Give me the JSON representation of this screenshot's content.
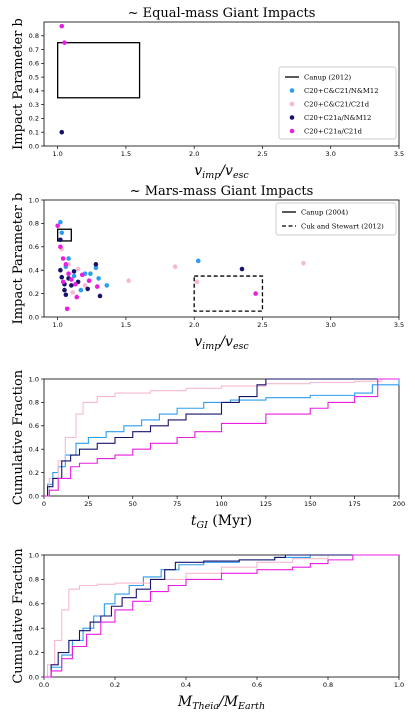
{
  "colors": {
    "blue": "#2b9ef0",
    "pink": "#f7b9cf",
    "navy": "#17136b",
    "magenta": "#e91ee0"
  },
  "chart_data": [
    {
      "type": "scatter",
      "title": "~ Equal-mass Giant Impacts",
      "ylabel": "Impact Parameter b",
      "xlabel_main": "v",
      "xlabel_sub1": "imp",
      "xlabel_mid": "/v",
      "xlabel_sub2": "esc",
      "xlim": [
        0.9,
        3.5
      ],
      "ylim": [
        0.0,
        0.9
      ],
      "xticks": [
        "1.0",
        "1.5",
        "2.0",
        "2.5",
        "3.0",
        "3.5"
      ],
      "yticks": [
        "0.0",
        "0.1",
        "0.2",
        "0.3",
        "0.4",
        "0.5",
        "0.6",
        "0.7",
        "0.8"
      ],
      "legend_placement": "lower-right",
      "boxes": [
        {
          "label": "Canup (2012)",
          "style": "solid",
          "x0": 1.0,
          "x1": 1.6,
          "y0": 0.35,
          "y1": 0.75
        }
      ],
      "series": [
        {
          "name": "C20+C&C21/N&M12",
          "color": "blue",
          "points": []
        },
        {
          "name": "C20+C&C21/C21d",
          "color": "pink",
          "points": []
        },
        {
          "name": "C20+C21a/N&M12",
          "color": "navy",
          "points": [
            [
              1.03,
              0.1
            ]
          ]
        },
        {
          "name": "C20+C21a/C21d",
          "color": "magenta",
          "points": [
            [
              1.03,
              0.87
            ],
            [
              1.05,
              0.75
            ]
          ]
        }
      ]
    },
    {
      "type": "scatter",
      "title": "~ Mars-mass Giant Impacts",
      "ylabel": "Impact Parameter b",
      "xlabel_main": "v",
      "xlabel_sub1": "imp",
      "xlabel_mid": "/v",
      "xlabel_sub2": "esc",
      "xlim": [
        0.9,
        3.5
      ],
      "ylim": [
        0.0,
        1.0
      ],
      "xticks": [
        "1.0",
        "1.5",
        "2.0",
        "2.5",
        "3.0",
        "3.5"
      ],
      "yticks": [
        "0.0",
        "0.2",
        "0.4",
        "0.6",
        "0.8",
        "1.0"
      ],
      "legend_placement": "upper-right",
      "boxes": [
        {
          "label": "Canup (2004)",
          "style": "solid",
          "x0": 1.0,
          "x1": 1.1,
          "y0": 0.65,
          "y1": 0.75
        },
        {
          "label": "Cuk and Stewart (2012)",
          "style": "dashed",
          "x0": 2.0,
          "x1": 2.5,
          "y0": 0.05,
          "y1": 0.35
        }
      ],
      "series": [
        {
          "name": "C20+C&C21/N&M12",
          "color": "blue",
          "points": [
            [
              1.02,
              0.81
            ],
            [
              1.03,
              0.72
            ],
            [
              1.06,
              0.43
            ],
            [
              1.12,
              0.35
            ],
            [
              1.17,
              0.23
            ],
            [
              1.2,
              0.37
            ],
            [
              1.24,
              0.37
            ],
            [
              1.3,
              0.33
            ],
            [
              1.36,
              0.27
            ],
            [
              1.28,
              0.42
            ],
            [
              2.03,
              0.48
            ],
            [
              1.08,
              0.5
            ]
          ]
        },
        {
          "name": "C20+C&C21/C21d",
          "color": "pink",
          "points": [
            [
              1.03,
              0.58
            ],
            [
              1.08,
              0.45
            ],
            [
              1.15,
              0.41
            ],
            [
              1.2,
              0.27
            ],
            [
              1.52,
              0.31
            ],
            [
              1.86,
              0.43
            ],
            [
              2.8,
              0.46
            ],
            [
              1.11,
              0.21
            ],
            [
              2.02,
              0.3
            ]
          ]
        },
        {
          "name": "C20+C21a/N&M12",
          "color": "navy",
          "points": [
            [
              1.02,
              0.66
            ],
            [
              1.02,
              0.4
            ],
            [
              1.03,
              0.34
            ],
            [
              1.05,
              0.28
            ],
            [
              1.06,
              0.19
            ],
            [
              1.08,
              0.33
            ],
            [
              1.1,
              0.27
            ],
            [
              1.15,
              0.3
            ],
            [
              1.22,
              0.24
            ],
            [
              1.28,
              0.45
            ],
            [
              1.31,
              0.18
            ],
            [
              2.35,
              0.41
            ],
            [
              1.12,
              0.39
            ],
            [
              1.05,
              0.23
            ]
          ]
        },
        {
          "name": "C20+C21a/C21d",
          "color": "magenta",
          "points": [
            [
              1.0,
              0.78
            ],
            [
              1.02,
              0.6
            ],
            [
              1.04,
              0.5
            ],
            [
              1.06,
              0.45
            ],
            [
              1.08,
              0.37
            ],
            [
              1.1,
              0.32
            ],
            [
              1.13,
              0.28
            ],
            [
              1.18,
              0.36
            ],
            [
              1.23,
              0.31
            ],
            [
              1.29,
              0.26
            ],
            [
              1.07,
              0.07
            ],
            [
              2.45,
              0.2
            ],
            [
              1.04,
              0.3
            ],
            [
              1.14,
              0.17
            ]
          ]
        }
      ]
    },
    {
      "type": "line",
      "title": "",
      "ylabel": "Cumulative Fraction",
      "xlabel_main": "t",
      "xlabel_sub1": "GI",
      "xlabel_mid": " (Myr)",
      "xlabel_sub2": "",
      "xlim": [
        0,
        200
      ],
      "ylim": [
        0.0,
        1.0
      ],
      "xticks": [
        "0",
        "25",
        "50",
        "75",
        "100",
        "125",
        "150",
        "175",
        "200"
      ],
      "yticks": [
        "0.0",
        "0.2",
        "0.4",
        "0.6",
        "0.8",
        "1.0"
      ],
      "series": [
        {
          "name": "C20+C&C21/N&M12",
          "color": "blue",
          "x": [
            0,
            2,
            5,
            8,
            12,
            18,
            25,
            35,
            45,
            55,
            65,
            75,
            90,
            105,
            125,
            150,
            175,
            185,
            200
          ],
          "y": [
            0,
            0.1,
            0.2,
            0.25,
            0.35,
            0.45,
            0.5,
            0.55,
            0.6,
            0.65,
            0.7,
            0.75,
            0.8,
            0.82,
            0.84,
            0.86,
            0.88,
            0.95,
            1.0
          ]
        },
        {
          "name": "C20+C&C21/C21d",
          "color": "pink",
          "x": [
            0,
            3,
            8,
            12,
            18,
            22,
            30,
            40,
            60,
            80,
            100,
            125,
            150,
            175,
            190,
            200
          ],
          "y": [
            0,
            0.15,
            0.3,
            0.5,
            0.7,
            0.8,
            0.85,
            0.88,
            0.9,
            0.92,
            0.94,
            0.96,
            0.97,
            0.98,
            1.0,
            1.0
          ]
        },
        {
          "name": "C20+C21a/N&M12",
          "color": "navy",
          "x": [
            0,
            2,
            5,
            10,
            15,
            20,
            30,
            40,
            50,
            60,
            70,
            80,
            100,
            110,
            120,
            125,
            150,
            200
          ],
          "y": [
            0,
            0.08,
            0.15,
            0.3,
            0.35,
            0.4,
            0.45,
            0.5,
            0.55,
            0.6,
            0.65,
            0.7,
            0.8,
            0.85,
            0.95,
            1.0,
            1.0,
            1.0
          ]
        },
        {
          "name": "C20+C21a/C21d",
          "color": "magenta",
          "x": [
            0,
            3,
            8,
            15,
            20,
            30,
            40,
            50,
            60,
            75,
            85,
            100,
            125,
            150,
            160,
            175,
            188,
            200
          ],
          "y": [
            0,
            0.05,
            0.15,
            0.25,
            0.28,
            0.32,
            0.35,
            0.4,
            0.45,
            0.5,
            0.55,
            0.62,
            0.7,
            0.75,
            0.8,
            0.85,
            1.0,
            1.0
          ]
        }
      ]
    },
    {
      "type": "line",
      "title": "",
      "ylabel": "Cumulative Fraction",
      "xlabel_main": "M",
      "xlabel_sub1": "Theia",
      "xlabel_mid": "/M",
      "xlabel_sub2": "Earth",
      "xlim": [
        0,
        1.0
      ],
      "ylim": [
        0.0,
        1.0
      ],
      "xticks": [
        "0.0",
        "0.2",
        "0.4",
        "0.6",
        "0.8",
        "1.0"
      ],
      "yticks": [
        "0.0",
        "0.2",
        "0.4",
        "0.6",
        "0.8",
        "1.0"
      ],
      "series": [
        {
          "name": "C20+C&C21/N&M12",
          "color": "blue",
          "x": [
            0,
            0.02,
            0.05,
            0.08,
            0.11,
            0.14,
            0.17,
            0.2,
            0.24,
            0.28,
            0.33,
            0.38,
            0.45,
            0.55,
            0.65,
            0.75,
            1.0
          ],
          "y": [
            0,
            0.08,
            0.18,
            0.3,
            0.4,
            0.5,
            0.6,
            0.68,
            0.75,
            0.82,
            0.88,
            0.92,
            0.94,
            0.96,
            0.98,
            1.0,
            1.0
          ]
        },
        {
          "name": "C20+C&C21/C21d",
          "color": "pink",
          "x": [
            0,
            0.01,
            0.03,
            0.05,
            0.07,
            0.1,
            0.15,
            0.2,
            0.3,
            0.4,
            0.5,
            0.6,
            0.7,
            0.8,
            1.0
          ],
          "y": [
            0,
            0.1,
            0.3,
            0.55,
            0.72,
            0.75,
            0.76,
            0.77,
            0.8,
            0.85,
            0.9,
            0.94,
            0.97,
            1.0,
            1.0
          ]
        },
        {
          "name": "C20+C21a/N&M12",
          "color": "navy",
          "x": [
            0,
            0.02,
            0.04,
            0.07,
            0.1,
            0.13,
            0.16,
            0.19,
            0.22,
            0.26,
            0.3,
            0.34,
            0.37,
            0.45,
            0.55,
            0.65,
            0.68,
            1.0
          ],
          "y": [
            0,
            0.1,
            0.2,
            0.3,
            0.38,
            0.45,
            0.5,
            0.58,
            0.65,
            0.72,
            0.8,
            0.88,
            0.94,
            0.95,
            0.96,
            0.98,
            1.0,
            1.0
          ]
        },
        {
          "name": "C20+C21a/C21d",
          "color": "magenta",
          "x": [
            0,
            0.02,
            0.05,
            0.08,
            0.12,
            0.16,
            0.2,
            0.25,
            0.3,
            0.35,
            0.4,
            0.5,
            0.6,
            0.7,
            0.75,
            0.8,
            0.87,
            1.0
          ],
          "y": [
            0,
            0.05,
            0.15,
            0.25,
            0.35,
            0.45,
            0.55,
            0.62,
            0.7,
            0.75,
            0.8,
            0.85,
            0.88,
            0.9,
            0.93,
            0.96,
            1.0,
            1.0
          ]
        }
      ]
    }
  ]
}
